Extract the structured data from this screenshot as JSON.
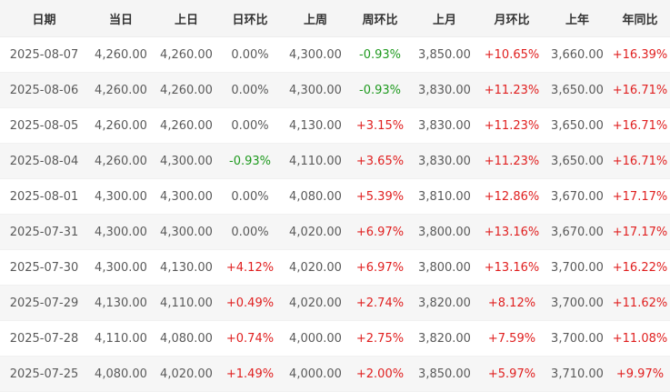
{
  "table": {
    "headers": [
      "日期",
      "当日",
      "上日",
      "日环比",
      "上周",
      "周环比",
      "上月",
      "月环比",
      "上年",
      "年同比"
    ],
    "rows": [
      [
        "2025-08-07",
        "4,260.00",
        "4,260.00",
        "0.00%",
        "4,300.00",
        "-0.93%",
        "3,850.00",
        "+10.65%",
        "3,660.00",
        "+16.39%"
      ],
      [
        "2025-08-06",
        "4,260.00",
        "4,260.00",
        "0.00%",
        "4,300.00",
        "-0.93%",
        "3,830.00",
        "+11.23%",
        "3,650.00",
        "+16.71%"
      ],
      [
        "2025-08-05",
        "4,260.00",
        "4,260.00",
        "0.00%",
        "4,130.00",
        "+3.15%",
        "3,830.00",
        "+11.23%",
        "3,650.00",
        "+16.71%"
      ],
      [
        "2025-08-04",
        "4,260.00",
        "4,300.00",
        "-0.93%",
        "4,110.00",
        "+3.65%",
        "3,830.00",
        "+11.23%",
        "3,650.00",
        "+16.71%"
      ],
      [
        "2025-08-01",
        "4,300.00",
        "4,300.00",
        "0.00%",
        "4,080.00",
        "+5.39%",
        "3,810.00",
        "+12.86%",
        "3,670.00",
        "+17.17%"
      ],
      [
        "2025-07-31",
        "4,300.00",
        "4,300.00",
        "0.00%",
        "4,020.00",
        "+6.97%",
        "3,800.00",
        "+13.16%",
        "3,670.00",
        "+17.17%"
      ],
      [
        "2025-07-30",
        "4,300.00",
        "4,130.00",
        "+4.12%",
        "4,020.00",
        "+6.97%",
        "3,800.00",
        "+13.16%",
        "3,700.00",
        "+16.22%"
      ],
      [
        "2025-07-29",
        "4,130.00",
        "4,110.00",
        "+0.49%",
        "4,020.00",
        "+2.74%",
        "3,820.00",
        "+8.12%",
        "3,700.00",
        "+11.62%"
      ],
      [
        "2025-07-28",
        "4,110.00",
        "4,080.00",
        "+0.74%",
        "4,000.00",
        "+2.75%",
        "3,820.00",
        "+7.59%",
        "3,700.00",
        "+11.08%"
      ],
      [
        "2025-07-25",
        "4,080.00",
        "4,020.00",
        "+1.49%",
        "4,000.00",
        "+2.00%",
        "3,850.00",
        "+5.97%",
        "3,710.00",
        "+9.97%"
      ]
    ]
  },
  "colors": {
    "up": "#e02020",
    "down": "#1f9a1f",
    "header_bg": "#f5f5f5",
    "stripe_bg": "#f6f6f6"
  }
}
